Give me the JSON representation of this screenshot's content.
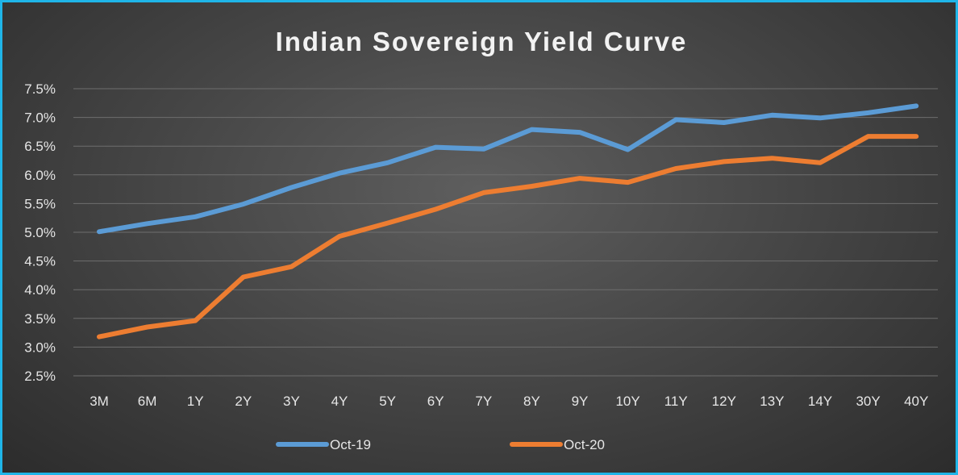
{
  "chart_data": {
    "type": "line",
    "title": "Indian Sovereign Yield Curve",
    "xlabel": "",
    "ylabel": "",
    "categories": [
      "3M",
      "6M",
      "1Y",
      "2Y",
      "3Y",
      "4Y",
      "5Y",
      "6Y",
      "7Y",
      "8Y",
      "9Y",
      "10Y",
      "11Y",
      "12Y",
      "13Y",
      "14Y",
      "30Y",
      "40Y"
    ],
    "ylim": [
      2.5,
      7.5
    ],
    "yticks": [
      "2.5%",
      "3.0%",
      "3.5%",
      "4.0%",
      "4.5%",
      "5.0%",
      "5.5%",
      "6.0%",
      "6.5%",
      "7.0%",
      "7.5%"
    ],
    "grid": true,
    "legend_position": "bottom",
    "series": [
      {
        "name": "Oct-19",
        "color": "#5b9bd5",
        "values": [
          5.01,
          5.15,
          5.27,
          5.49,
          5.78,
          6.03,
          6.21,
          6.48,
          6.45,
          6.79,
          6.74,
          6.44,
          6.96,
          6.91,
          7.04,
          6.99,
          7.08,
          7.2
        ]
      },
      {
        "name": "Oct-20",
        "color": "#ed7d31",
        "values": [
          3.18,
          3.35,
          3.46,
          4.22,
          4.4,
          4.93,
          5.16,
          5.4,
          5.69,
          5.8,
          5.94,
          5.87,
          6.11,
          6.23,
          6.29,
          6.21,
          6.67,
          6.67
        ]
      }
    ]
  }
}
